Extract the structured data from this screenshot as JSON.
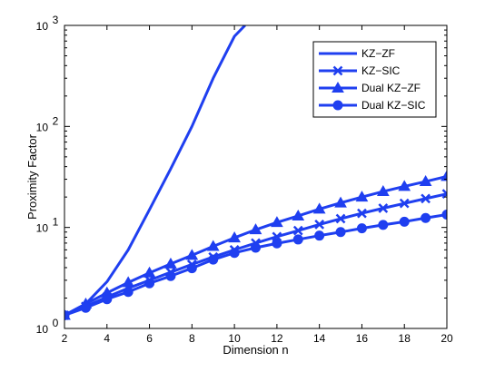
{
  "chart_data": {
    "type": "line",
    "title": "",
    "xlabel": "Dimension n",
    "ylabel": "Proximity Factor",
    "xlim": [
      2,
      20
    ],
    "ylim": [
      1,
      1000
    ],
    "yscale": "log",
    "grid": false,
    "legend_position": "top-right",
    "x_ticks": [
      2,
      4,
      6,
      8,
      10,
      12,
      14,
      16,
      18,
      20
    ],
    "y_ticks": [
      {
        "value": 1,
        "base": "10",
        "exp": "0"
      },
      {
        "value": 10,
        "base": "10",
        "exp": "1"
      },
      {
        "value": 100,
        "base": "10",
        "exp": "2"
      },
      {
        "value": 1000,
        "base": "10",
        "exp": "3"
      }
    ],
    "line_color": "#1f3ff0",
    "series": [
      {
        "name": "KZ−ZF",
        "marker": "none",
        "x": [
          2,
          3,
          4,
          5,
          6,
          7,
          8,
          9,
          10,
          10.5
        ],
        "y": [
          1.35,
          1.75,
          2.9,
          6.0,
          15,
          38,
          100,
          300,
          780,
          1000
        ]
      },
      {
        "name": "KZ−SIC",
        "marker": "x",
        "x": [
          2,
          3,
          4,
          5,
          6,
          7,
          8,
          9,
          10,
          11,
          12,
          13,
          14,
          15,
          16,
          17,
          18,
          19,
          20
        ],
        "y": [
          1.35,
          1.65,
          2.05,
          2.5,
          3.0,
          3.6,
          4.3,
          5.1,
          6.0,
          7.0,
          8.1,
          9.3,
          10.7,
          12.2,
          13.8,
          15.5,
          17.3,
          19.3,
          21.5
        ]
      },
      {
        "name": "Dual KZ−ZF",
        "marker": "triangle",
        "x": [
          2,
          3,
          4,
          5,
          6,
          7,
          8,
          9,
          10,
          11,
          12,
          13,
          14,
          15,
          16,
          17,
          18,
          19,
          20
        ],
        "y": [
          1.35,
          1.75,
          2.25,
          2.85,
          3.55,
          4.35,
          5.3,
          6.5,
          7.9,
          9.5,
          11.2,
          13.0,
          15.2,
          17.5,
          20.0,
          22.7,
          25.5,
          28.5,
          32.0
        ]
      },
      {
        "name": "Dual KZ−SIC",
        "marker": "circle",
        "x": [
          2,
          3,
          4,
          5,
          6,
          7,
          8,
          9,
          10,
          11,
          12,
          13,
          14,
          15,
          16,
          17,
          18,
          19,
          20
        ],
        "y": [
          1.35,
          1.6,
          1.95,
          2.3,
          2.8,
          3.3,
          3.95,
          4.8,
          5.6,
          6.3,
          6.95,
          7.6,
          8.3,
          9.0,
          9.8,
          10.6,
          11.4,
          12.4,
          13.4
        ]
      }
    ]
  }
}
